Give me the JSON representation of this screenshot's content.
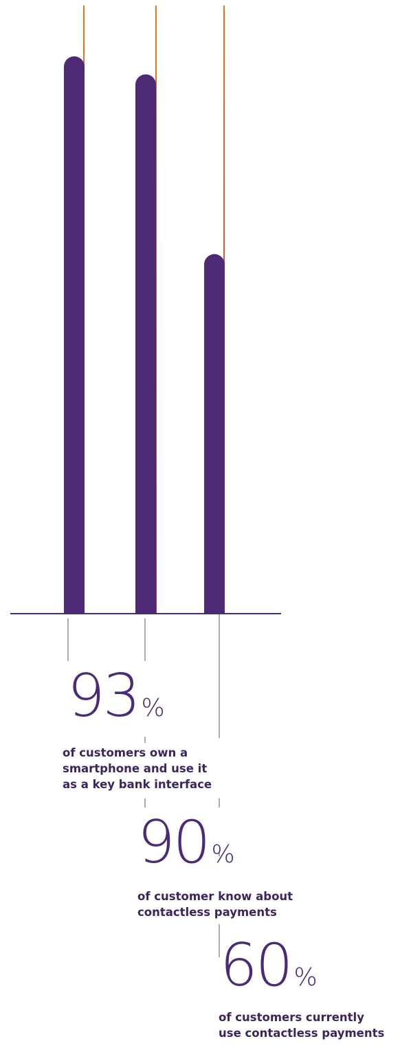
{
  "colors": {
    "bar": "#4f2a74",
    "accent_line_top": "#e07a1c",
    "accent_line_bottom": "#c0305a",
    "axis": "#4b2a78",
    "connector": "#555555"
  },
  "chart_data": {
    "type": "bar",
    "categories": [
      "",
      "",
      ""
    ],
    "values": [
      93,
      90,
      60
    ],
    "ylim": [
      0,
      100
    ],
    "grid": false,
    "legend": "none"
  },
  "stats": [
    {
      "number": "93",
      "unit": "%",
      "description_lines": [
        "of customers own a",
        "smartphone and use it",
        "as a key bank interface"
      ]
    },
    {
      "number": "90",
      "unit": "%",
      "description_lines": [
        "of customer know about",
        "contactless payments"
      ]
    },
    {
      "number": "60",
      "unit": "%",
      "description_lines": [
        "of customers currently",
        "use contactless payments"
      ]
    }
  ]
}
